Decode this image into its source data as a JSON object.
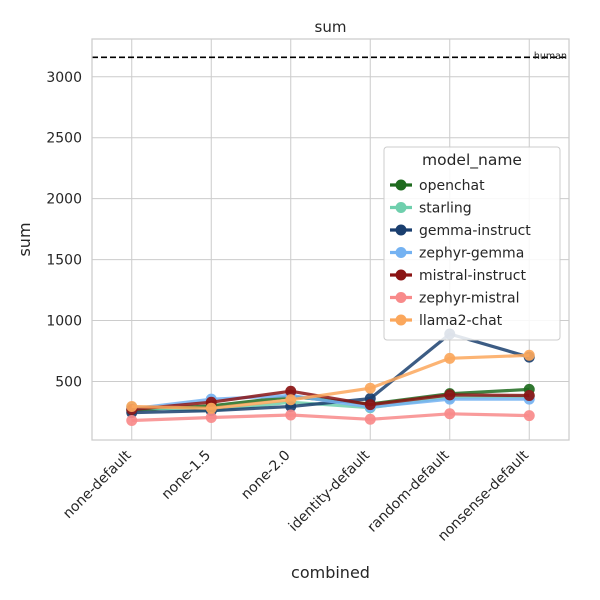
{
  "chart_data": {
    "type": "line",
    "title": "sum",
    "xlabel": "combined",
    "ylabel": "sum",
    "categories": [
      "none-default",
      "none-1.5",
      "none-2.0",
      "identity-default",
      "random-default",
      "nonsense-default"
    ],
    "ylim": [
      20,
      3310
    ],
    "yticks": [
      500,
      1000,
      1500,
      2000,
      2500,
      3000
    ],
    "grid": true,
    "legend": {
      "title": "model_name",
      "placement": "center-right"
    },
    "reference_line": {
      "label": "human",
      "value": 3160,
      "color": "#000000",
      "style": "dashed"
    },
    "series": [
      {
        "name": "openchat",
        "color": "#1e6b1e",
        "values": [
          265,
          300,
          375,
          315,
          400,
          435
        ]
      },
      {
        "name": "starling",
        "color": "#6fcfad",
        "values": [
          290,
          260,
          330,
          285,
          370,
          380
        ]
      },
      {
        "name": "gemma-instruct",
        "color": "#1a3f6f",
        "values": [
          245,
          260,
          295,
          360,
          890,
          700
        ]
      },
      {
        "name": "zephyr-gemma",
        "color": "#74b2f2",
        "values": [
          275,
          355,
          385,
          290,
          355,
          355
        ]
      },
      {
        "name": "mistral-instruct",
        "color": "#8b1414",
        "values": [
          270,
          330,
          420,
          310,
          390,
          385
        ]
      },
      {
        "name": "zephyr-mistral",
        "color": "#f88a8a",
        "values": [
          180,
          205,
          225,
          190,
          235,
          220
        ]
      },
      {
        "name": "llama2-chat",
        "color": "#fba75c",
        "values": [
          295,
          280,
          350,
          445,
          690,
          715
        ]
      }
    ]
  }
}
